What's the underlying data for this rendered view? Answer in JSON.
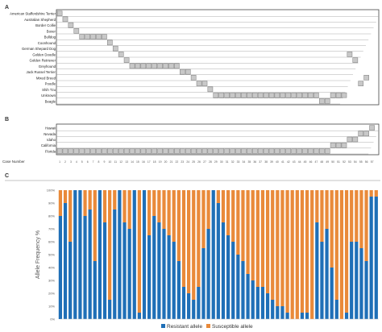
{
  "colors": {
    "grid_fill": "#c8c8c8",
    "grid_stroke": "#7a7a7a",
    "resistant": "#1f6fb7",
    "susceptible": "#e98a3a"
  },
  "chart_data": [
    {
      "panel": "A",
      "type": "table",
      "rows": [
        "American Staffordshire Terrier",
        "Australian Shepherd",
        "Border Collie",
        "Boxer",
        "Bulldog",
        "Coonhound",
        "German Shepard Dog",
        "Golden Doodle",
        "Golden Retriever",
        "Greyhound",
        "Jack Russel Terrier",
        "Mixed Breed",
        "Poodle",
        "Shih Tzu",
        "Unknown",
        "Beagle"
      ],
      "cells": [
        [
          1
        ],
        [
          2
        ],
        [
          3
        ],
        [
          4
        ],
        [
          5,
          6,
          7,
          8,
          9
        ],
        [
          10
        ],
        [
          11
        ],
        [
          12
        ],
        [
          13
        ],
        [
          14,
          15,
          16,
          17,
          18,
          19,
          20,
          21,
          22
        ],
        [
          23,
          24
        ],
        [
          25
        ],
        [
          26,
          27
        ],
        [
          28
        ],
        [
          29,
          30,
          31,
          32,
          33,
          34,
          35,
          36,
          37,
          38,
          39,
          40,
          41,
          42,
          43,
          44,
          45,
          46,
          47
        ],
        [
          48,
          49
        ]
      ],
      "extra_cells": {
        "Golden Doodle": [
          53
        ],
        "Golden Retriever": [
          54
        ],
        "Mixed Breed": [
          56
        ],
        "Poodle": [
          55
        ],
        "Unknown": [
          50,
          51,
          52
        ]
      }
    },
    {
      "panel": "B",
      "type": "table",
      "rows": [
        "Hawaii",
        "Nevada",
        "Idaho",
        "California",
        "Florida"
      ],
      "cells": [
        [
          57
        ],
        [
          55,
          56
        ],
        [
          53,
          54
        ],
        [
          50,
          51,
          52
        ],
        [
          1,
          2,
          3,
          4,
          5,
          6,
          7,
          8,
          9,
          10,
          11,
          12,
          13,
          14,
          15,
          16,
          17,
          18,
          19,
          20,
          21,
          22,
          23,
          24,
          25,
          26,
          27,
          28,
          29,
          30,
          31,
          32,
          33,
          34,
          35,
          36,
          37,
          38,
          39,
          40,
          41,
          42,
          43,
          44,
          45,
          46,
          47,
          48,
          49
        ]
      ],
      "xlabel": "Case Number",
      "categories": [
        "1",
        "2",
        "3",
        "4",
        "5",
        "6",
        "7",
        "8",
        "9",
        "10",
        "11",
        "12",
        "13",
        "14",
        "15",
        "16",
        "17",
        "18",
        "19",
        "20",
        "21",
        "22",
        "23",
        "24",
        "25",
        "26",
        "27",
        "28",
        "29",
        "30",
        "31",
        "32",
        "33",
        "34",
        "35",
        "36",
        "37",
        "38",
        "39",
        "40",
        "41",
        "42",
        "43",
        "44",
        "45",
        "46",
        "47",
        "48",
        "49",
        "50",
        "51",
        "52",
        "53",
        "54",
        "55",
        "56",
        "57"
      ]
    },
    {
      "panel": "C",
      "type": "bar",
      "stacked": true,
      "ylabel": "Allele Frequency %",
      "ylim": [
        0,
        100
      ],
      "yticks": [
        "0%",
        "10%",
        "20%",
        "30%",
        "40%",
        "50%",
        "60%",
        "70%",
        "80%",
        "90%",
        "100%"
      ],
      "grid": false,
      "legend_position": "bottom",
      "series": [
        {
          "name": "Resistant allele",
          "values": [
            80,
            90,
            60,
            100,
            100,
            80,
            85,
            45,
            100,
            75,
            15,
            85,
            100,
            75,
            70,
            100,
            5,
            100,
            65,
            80,
            75,
            70,
            65,
            60,
            45,
            25,
            20,
            15,
            25,
            55,
            70,
            100,
            90,
            75,
            65,
            60,
            50,
            45,
            35,
            30,
            25,
            25,
            20,
            15,
            10,
            10,
            5,
            0,
            0,
            5,
            5,
            0,
            75,
            60,
            70,
            40,
            15,
            0,
            5,
            60,
            60,
            55,
            45,
            95,
            95
          ]
        },
        {
          "name": "Susceptible allele",
          "values": [
            20,
            10,
            40,
            0,
            0,
            20,
            15,
            55,
            0,
            25,
            85,
            15,
            0,
            25,
            30,
            0,
            95,
            0,
            35,
            20,
            25,
            30,
            35,
            40,
            55,
            75,
            80,
            85,
            75,
            45,
            30,
            0,
            10,
            25,
            35,
            40,
            50,
            55,
            65,
            70,
            75,
            75,
            80,
            85,
            90,
            90,
            95,
            100,
            100,
            95,
            95,
            100,
            25,
            40,
            30,
            60,
            85,
            100,
            95,
            40,
            40,
            45,
            55,
            5,
            5
          ]
        }
      ]
    }
  ],
  "panelA": {
    "label": "A",
    "rows": [
      "American Staffordshire Terrier",
      "Australian Shepherd",
      "Border Collie",
      "Boxer",
      "Bulldog",
      "Coonhound",
      "German Shepard Dog",
      "Golden Doodle",
      "Golden Retriever",
      "Greyhound",
      "Jack Russel Terrier",
      "Mixed Breed",
      "Poodle",
      "Shih Tzu",
      "Unknown",
      "Beagle"
    ]
  },
  "panelB": {
    "label": "B",
    "rows": [
      "Hawaii",
      "Nevada",
      "Idaho",
      "California",
      "Florida"
    ],
    "case_label": "Case Number"
  },
  "panelC": {
    "label": "C",
    "ylabel": "Allele Frequency %",
    "yticks": [
      "0%",
      "10%",
      "20%",
      "30%",
      "40%",
      "50%",
      "60%",
      "70%",
      "80%",
      "90%",
      "100%"
    ],
    "legend": [
      "Resistant allele",
      "Susceptible allele"
    ]
  }
}
